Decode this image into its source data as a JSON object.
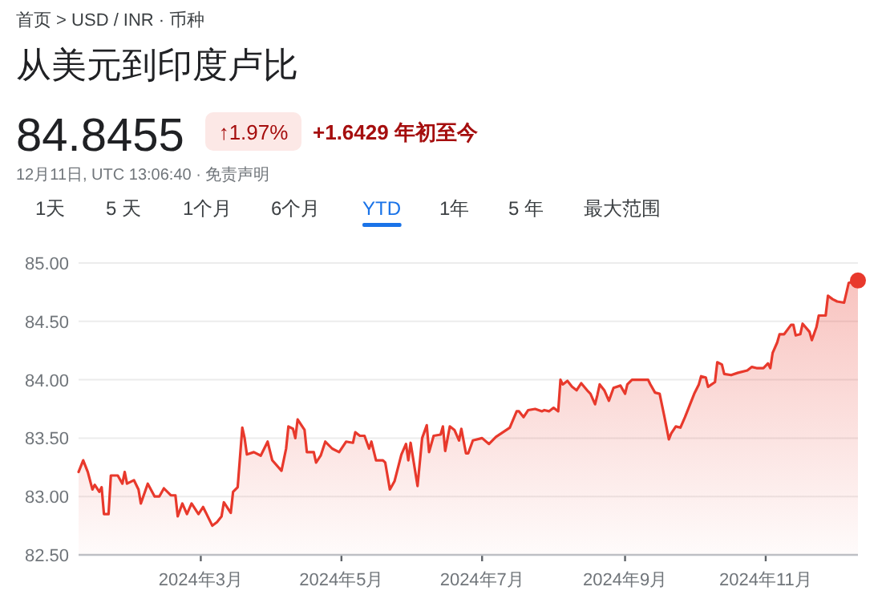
{
  "chart_data": {
    "type": "area",
    "title": "从美元到印度卢比",
    "annotations": [
      "首页 > USD / INR · 币种",
      "84.8455",
      "↑1.97%",
      "+1.6429 年初至今",
      "12月11日, UTC 13:06:40 · 免责声明",
      "1天",
      "5 天",
      "1个月",
      "6个月",
      "YTD",
      "1年",
      "5 年",
      "最大范围"
    ],
    "xlim": [
      "2024-01-08",
      "2024-12-11"
    ],
    "ylim": [
      82.5,
      85.0
    ],
    "xticks": [
      {
        "value": "2024-03-01",
        "label": "2024年3月"
      },
      {
        "value": "2024-05-01",
        "label": "2024年5月"
      },
      {
        "value": "2024-07-01",
        "label": "2024年7月"
      },
      {
        "value": "2024-09-01",
        "label": "2024年9月"
      },
      {
        "value": "2024-11-01",
        "label": "2024年11月"
      }
    ],
    "yticks": [
      {
        "value": 82.5,
        "label": "82.50"
      },
      {
        "value": 83.0,
        "label": "83.00"
      },
      {
        "value": 83.5,
        "label": "83.50"
      },
      {
        "value": 84.0,
        "label": "84.00"
      },
      {
        "value": 84.5,
        "label": "84.50"
      },
      {
        "value": 85.0,
        "label": "85.00"
      }
    ],
    "grid": "y",
    "series": [
      {
        "color": "#e8392c",
        "x": [
          "2024-01-08",
          "2024-01-10",
          "2024-01-12",
          "2024-01-14",
          "2024-01-15",
          "2024-01-17",
          "2024-01-18",
          "2024-01-19",
          "2024-01-21",
          "2024-01-22",
          "2024-01-25",
          "2024-01-27",
          "2024-01-28",
          "2024-01-29",
          "2024-02-01",
          "2024-02-03",
          "2024-02-04",
          "2024-02-07",
          "2024-02-10",
          "2024-02-12",
          "2024-02-14",
          "2024-02-17",
          "2024-02-19",
          "2024-02-20",
          "2024-02-22",
          "2024-02-24",
          "2024-02-26",
          "2024-02-29",
          "2024-03-02",
          "2024-03-06",
          "2024-03-08",
          "2024-03-10",
          "2024-03-11",
          "2024-03-14",
          "2024-03-15",
          "2024-03-17",
          "2024-03-19",
          "2024-03-20",
          "2024-03-21",
          "2024-03-24",
          "2024-03-27",
          "2024-03-30",
          "2024-04-01",
          "2024-04-05",
          "2024-04-07",
          "2024-04-08",
          "2024-04-10",
          "2024-04-11",
          "2024-04-12",
          "2024-04-15",
          "2024-04-16",
          "2024-04-19",
          "2024-04-20",
          "2024-04-22",
          "2024-04-24",
          "2024-04-27",
          "2024-04-30",
          "2024-05-03",
          "2024-05-06",
          "2024-05-07",
          "2024-05-09",
          "2024-05-11",
          "2024-05-13",
          "2024-05-14",
          "2024-05-16",
          "2024-05-19",
          "2024-05-20",
          "2024-05-22",
          "2024-05-24",
          "2024-05-27",
          "2024-05-29",
          "2024-05-30",
          "2024-05-31",
          "2024-06-03",
          "2024-06-05",
          "2024-06-07",
          "2024-06-08",
          "2024-06-10",
          "2024-06-13",
          "2024-06-14",
          "2024-06-15",
          "2024-06-17",
          "2024-06-19",
          "2024-06-21",
          "2024-06-22",
          "2024-06-24",
          "2024-06-25",
          "2024-06-27",
          "2024-07-01",
          "2024-07-04",
          "2024-07-07",
          "2024-07-10",
          "2024-07-13",
          "2024-07-16",
          "2024-07-17",
          "2024-07-19",
          "2024-07-21",
          "2024-07-24",
          "2024-07-27",
          "2024-07-28",
          "2024-07-30",
          "2024-08-01",
          "2024-08-03",
          "2024-08-04",
          "2024-08-05",
          "2024-08-07",
          "2024-08-09",
          "2024-08-11",
          "2024-08-13",
          "2024-08-16",
          "2024-08-17",
          "2024-08-19",
          "2024-08-20",
          "2024-08-21",
          "2024-08-23",
          "2024-08-25",
          "2024-08-27",
          "2024-08-30",
          "2024-09-01",
          "2024-09-02",
          "2024-09-04",
          "2024-09-08",
          "2024-09-11",
          "2024-09-12",
          "2024-09-14",
          "2024-09-16",
          "2024-09-18",
          "2024-09-20",
          "2024-09-21",
          "2024-09-23",
          "2024-09-25",
          "2024-09-27",
          "2024-09-29",
          "2024-10-01",
          "2024-10-03",
          "2024-10-04",
          "2024-10-06",
          "2024-10-07",
          "2024-10-10",
          "2024-10-11",
          "2024-10-13",
          "2024-10-14",
          "2024-10-17",
          "2024-10-20",
          "2024-10-24",
          "2024-10-26",
          "2024-10-28",
          "2024-10-31",
          "2024-11-02",
          "2024-11-03",
          "2024-11-04",
          "2024-11-06",
          "2024-11-07",
          "2024-11-09",
          "2024-11-12",
          "2024-11-13",
          "2024-11-14",
          "2024-11-16",
          "2024-11-17",
          "2024-11-20",
          "2024-11-21",
          "2024-11-23",
          "2024-11-24",
          "2024-11-27",
          "2024-11-28",
          "2024-11-30",
          "2024-12-02",
          "2024-12-05",
          "2024-12-07",
          "2024-12-11"
        ],
        "values": [
          83.21,
          83.31,
          83.21,
          83.06,
          83.1,
          83.04,
          83.08,
          82.85,
          82.85,
          83.18,
          83.18,
          83.11,
          83.21,
          83.11,
          83.14,
          83.06,
          82.94,
          83.11,
          83.0,
          83.0,
          83.07,
          83.01,
          83.01,
          82.83,
          82.94,
          82.85,
          82.94,
          82.85,
          82.91,
          82.75,
          82.78,
          82.83,
          82.95,
          82.86,
          83.04,
          83.08,
          83.59,
          83.5,
          83.36,
          83.38,
          83.35,
          83.47,
          83.31,
          83.22,
          83.41,
          83.6,
          83.58,
          83.5,
          83.66,
          83.57,
          83.38,
          83.38,
          83.29,
          83.35,
          83.47,
          83.41,
          83.38,
          83.47,
          83.46,
          83.55,
          83.52,
          83.52,
          83.41,
          83.47,
          83.31,
          83.31,
          83.29,
          83.06,
          83.13,
          83.36,
          83.45,
          83.31,
          83.46,
          83.09,
          83.5,
          83.61,
          83.38,
          83.52,
          83.53,
          83.6,
          83.39,
          83.6,
          83.57,
          83.48,
          83.58,
          83.37,
          83.37,
          83.48,
          83.5,
          83.45,
          83.51,
          83.55,
          83.59,
          83.73,
          83.73,
          83.68,
          83.74,
          83.75,
          83.73,
          83.74,
          83.73,
          83.76,
          83.73,
          84.0,
          83.96,
          83.99,
          83.94,
          83.91,
          83.97,
          83.9,
          83.88,
          83.79,
          83.87,
          83.96,
          83.91,
          83.82,
          83.93,
          83.95,
          83.88,
          83.96,
          84.0,
          84.0,
          84.0,
          83.96,
          83.89,
          83.88,
          83.69,
          83.49,
          83.54,
          83.6,
          83.59,
          83.68,
          83.78,
          83.88,
          83.96,
          84.03,
          84.02,
          83.94,
          83.98,
          84.15,
          84.13,
          84.05,
          84.04,
          84.06,
          84.08,
          84.11,
          84.1,
          84.1,
          84.14,
          84.1,
          84.23,
          84.32,
          84.39,
          84.39,
          84.47,
          84.47,
          84.38,
          84.39,
          84.48,
          84.41,
          84.34,
          84.45,
          84.55,
          84.55,
          84.72,
          84.69,
          84.67,
          84.66,
          84.83,
          84.85
        ]
      },
      {
        "type": "scatter",
        "color": "#e8392c",
        "marker": "circle",
        "x": [
          "2024-12-11"
        ],
        "values": [
          84.85
        ]
      }
    ]
  }
}
